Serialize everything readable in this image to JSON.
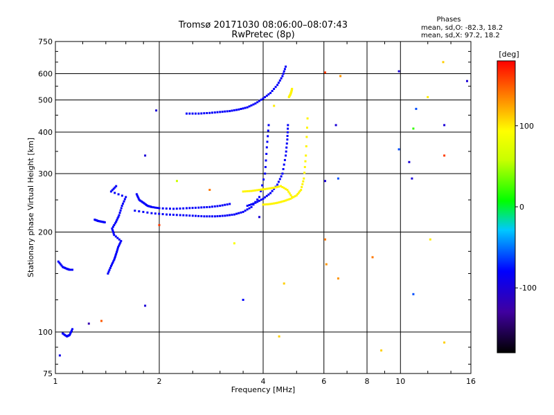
{
  "chart_data": {
    "type": "scatter",
    "title": "Tromsø 20171030 08:06:00–08:07:43",
    "subtitle": "RwPretec (8p)",
    "xlabel": "Frequency [MHz]",
    "ylabel": "Stationary phase Virtual Height [km]",
    "x_scale": "log",
    "y_scale": "log",
    "xlim": [
      1,
      16
    ],
    "ylim": [
      75,
      750
    ],
    "x_ticks": [
      1,
      2,
      4,
      6,
      8,
      10,
      16
    ],
    "y_ticks": [
      75,
      100,
      200,
      300,
      400,
      500,
      600,
      750
    ],
    "grid": true,
    "stats": {
      "heading": "Phases",
      "o_line": "mean, sd,O: -82.3, 18.2",
      "x_line": "mean, sd,X:  97.2, 18.2"
    },
    "colorbar": {
      "label": "[deg]",
      "range": [
        -180,
        180
      ],
      "ticks": [
        100,
        0,
        -100
      ]
    },
    "series": [
      {
        "mode": "O",
        "phase_deg": -82,
        "traces": [
          {
            "x": [
              1.7,
              1.9,
              2.1,
              2.3,
              2.5,
              2.7,
              2.9,
              3.1,
              3.3,
              3.5,
              3.7,
              3.9,
              4.05,
              4.1,
              4.15
            ],
            "y": [
              232,
              228,
              226,
              225,
              224,
              223,
              223,
              224,
              226,
              230,
              238,
              255,
              300,
              360,
              420
            ]
          },
          {
            "x": [
              1.72,
              1.75,
              1.8,
              1.85,
              1.9,
              2.0,
              2.2,
              2.4,
              2.6,
              2.8,
              3.0,
              3.2
            ],
            "y": [
              260,
              250,
              245,
              240,
              238,
              236,
              235,
              236,
              237,
              238,
              240,
              243
            ]
          },
          {
            "x": [
              2.4,
              2.6,
              2.8,
              3.0,
              3.2,
              3.4,
              3.6,
              3.8,
              4.0,
              4.2,
              4.4,
              4.55,
              4.65
            ],
            "y": [
              455,
              455,
              457,
              460,
              463,
              468,
              475,
              488,
              505,
              525,
              555,
              590,
              630
            ]
          },
          {
            "x": [
              3.6,
              3.8,
              4.0,
              4.2,
              4.4,
              4.55,
              4.65,
              4.7,
              4.72
            ],
            "y": [
              240,
              245,
              252,
              262,
              278,
              300,
              340,
              380,
              420
            ]
          },
          {
            "x": [
              1.42,
              1.45,
              1.48,
              1.5,
              1.52,
              1.55,
              1.48,
              1.46,
              1.5,
              1.53,
              1.56,
              1.6,
              1.45,
              1.5
            ],
            "y": [
              150,
              158,
              165,
              172,
              180,
              188,
              196,
              205,
              215,
              225,
              240,
              255,
              265,
              275
            ]
          },
          {
            "x": [
              1.02,
              1.05,
              1.08,
              1.1,
              1.12
            ],
            "y": [
              163,
              157,
              155,
              154,
              154
            ]
          },
          {
            "x": [
              1.3,
              1.33,
              1.36,
              1.39
            ],
            "y": [
              218,
              216,
              215,
              214
            ]
          },
          {
            "x": [
              1.05,
              1.08,
              1.1,
              1.12
            ],
            "y": [
              99,
              97,
              98,
              102
            ]
          }
        ]
      },
      {
        "mode": "X",
        "phase_deg": 97,
        "traces": [
          {
            "x": [
              4.0,
              4.2,
              4.4,
              4.6,
              4.8,
              5.0,
              5.15,
              5.25,
              5.32,
              5.38
            ],
            "y": [
              242,
              243,
              245,
              248,
              252,
              258,
              268,
              290,
              340,
              440
            ]
          },
          {
            "x": [
              3.5,
              3.7,
              3.9,
              4.1,
              4.3,
              4.5,
              4.7,
              4.85
            ],
            "y": [
              265,
              266,
              268,
              270,
              272,
              275,
              268,
              255
            ]
          },
          {
            "x": [
              4.75,
              4.8,
              4.83,
              4.85
            ],
            "y": [
              510,
              520,
              530,
              540
            ]
          }
        ]
      },
      {
        "mode": "noise",
        "points": [
          {
            "x": 1.03,
            "y": 85,
            "phase": -90
          },
          {
            "x": 1.25,
            "y": 106,
            "phase": -120
          },
          {
            "x": 1.36,
            "y": 108,
            "phase": 150
          },
          {
            "x": 1.82,
            "y": 120,
            "phase": -100
          },
          {
            "x": 1.82,
            "y": 340,
            "phase": -100
          },
          {
            "x": 1.96,
            "y": 465,
            "phase": -100
          },
          {
            "x": 2.0,
            "y": 210,
            "phase": 160
          },
          {
            "x": 2.25,
            "y": 285,
            "phase": 60
          },
          {
            "x": 2.8,
            "y": 268,
            "phase": 140
          },
          {
            "x": 3.3,
            "y": 185,
            "phase": 90
          },
          {
            "x": 3.5,
            "y": 125,
            "phase": -80
          },
          {
            "x": 3.9,
            "y": 222,
            "phase": -100
          },
          {
            "x": 4.3,
            "y": 480,
            "phase": 100
          },
          {
            "x": 4.45,
            "y": 97,
            "phase": 110
          },
          {
            "x": 4.6,
            "y": 140,
            "phase": 110
          },
          {
            "x": 6.05,
            "y": 605,
            "phase": 160
          },
          {
            "x": 6.05,
            "y": 285,
            "phase": -100
          },
          {
            "x": 6.05,
            "y": 190,
            "phase": 140
          },
          {
            "x": 6.1,
            "y": 160,
            "phase": 130
          },
          {
            "x": 6.5,
            "y": 420,
            "phase": -100
          },
          {
            "x": 6.6,
            "y": 145,
            "phase": 130
          },
          {
            "x": 6.6,
            "y": 290,
            "phase": -60
          },
          {
            "x": 6.7,
            "y": 590,
            "phase": 130
          },
          {
            "x": 8.3,
            "y": 168,
            "phase": 140
          },
          {
            "x": 8.8,
            "y": 88,
            "phase": 110
          },
          {
            "x": 9.9,
            "y": 610,
            "phase": -100
          },
          {
            "x": 9.9,
            "y": 355,
            "phase": -60
          },
          {
            "x": 10.6,
            "y": 325,
            "phase": -100
          },
          {
            "x": 10.8,
            "y": 290,
            "phase": -100
          },
          {
            "x": 10.9,
            "y": 410,
            "phase": 20
          },
          {
            "x": 10.9,
            "y": 130,
            "phase": -60
          },
          {
            "x": 11.1,
            "y": 470,
            "phase": -60
          },
          {
            "x": 12.0,
            "y": 510,
            "phase": 100
          },
          {
            "x": 12.2,
            "y": 190,
            "phase": 100
          },
          {
            "x": 13.3,
            "y": 650,
            "phase": 110
          },
          {
            "x": 13.4,
            "y": 340,
            "phase": 160
          },
          {
            "x": 13.4,
            "y": 420,
            "phase": -100
          },
          {
            "x": 13.4,
            "y": 93,
            "phase": 110
          },
          {
            "x": 15.6,
            "y": 570,
            "phase": -100
          }
        ]
      }
    ]
  }
}
